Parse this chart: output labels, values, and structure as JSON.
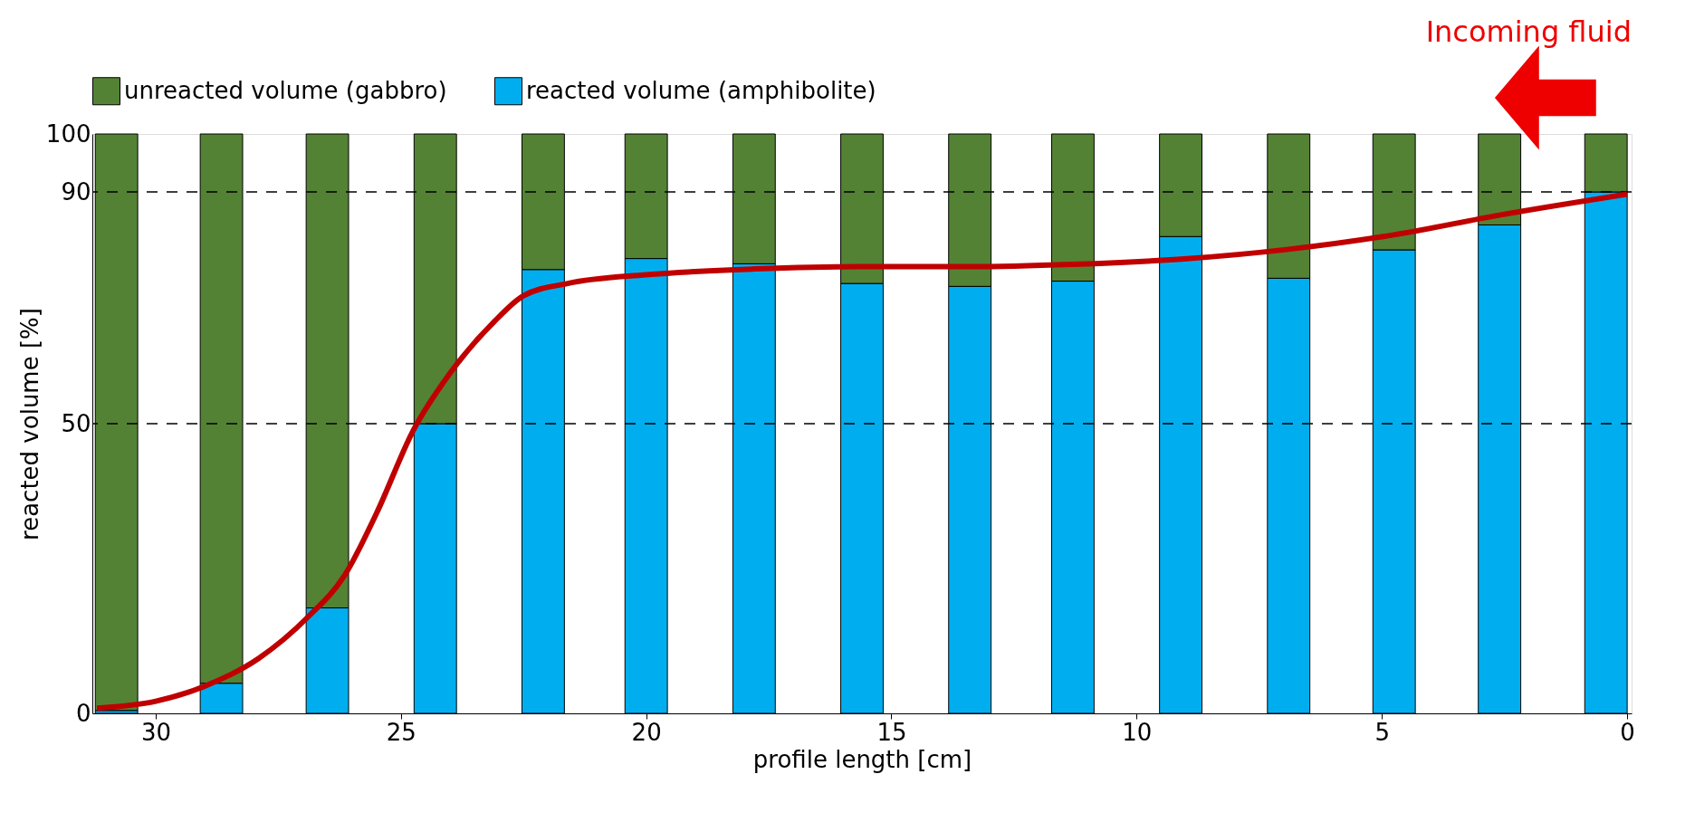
{
  "chart_data": {
    "type": "bar",
    "stacked": true,
    "xlabel": "profile length [cm]",
    "ylabel": "reacted volume [%]",
    "x": [
      30.8,
      28.66,
      26.5,
      24.3,
      22.1,
      20.0,
      17.8,
      15.6,
      13.4,
      11.3,
      9.1,
      6.9,
      4.75,
      2.6,
      0.43
    ],
    "xlim": [
      31.2,
      0
    ],
    "xticks": [
      30,
      25,
      20,
      15,
      10,
      5,
      0
    ],
    "ylim": [
      0,
      100
    ],
    "yticks": [
      0,
      50,
      90,
      100
    ],
    "series": [
      {
        "name": "reacted volume (amphibolite)",
        "color": "#00aeef",
        "values": [
          0.5,
          5.2,
          18.2,
          50,
          76.6,
          78.5,
          77.6,
          74.2,
          73.7,
          74.6,
          82.3,
          75.1,
          80.0,
          84.3,
          90
        ]
      },
      {
        "name": "unreacted volume (gabbro)",
        "color": "#548235",
        "values": [
          99.5,
          94.8,
          81.8,
          50,
          23.4,
          21.5,
          22.4,
          25.8,
          26.3,
          25.4,
          17.7,
          24.9,
          20.0,
          15.7,
          10
        ]
      },
      {
        "type": "line",
        "color": "#c00000",
        "x": [
          31.2,
          30,
          29,
          27.9,
          26.9,
          26.15,
          25.5,
          24.75,
          24.0,
          23.1,
          22.5,
          21.6,
          20,
          17.8,
          15.6,
          13.4,
          11.3,
          9.1,
          6.9,
          4.75,
          2.6,
          0
        ],
        "values": [
          0.9,
          2.1,
          4.7,
          9.5,
          16.6,
          23.8,
          34.5,
          48.8,
          58.7,
          67.6,
          72.1,
          74.2,
          75.7,
          76.7,
          77.1,
          77.1,
          77.5,
          78.4,
          80.1,
          82.6,
          86.0,
          89.6
        ]
      }
    ],
    "ref_lines": [
      {
        "axis": "y",
        "value": 50,
        "color": "#000000",
        "line_style": "dashed"
      },
      {
        "axis": "y",
        "value": 90,
        "color": "#000000",
        "line_style": "dashed"
      }
    ],
    "annotations": [
      "Incoming fluid"
    ],
    "legend": "top left",
    "grid": false,
    "marker": "none"
  }
}
